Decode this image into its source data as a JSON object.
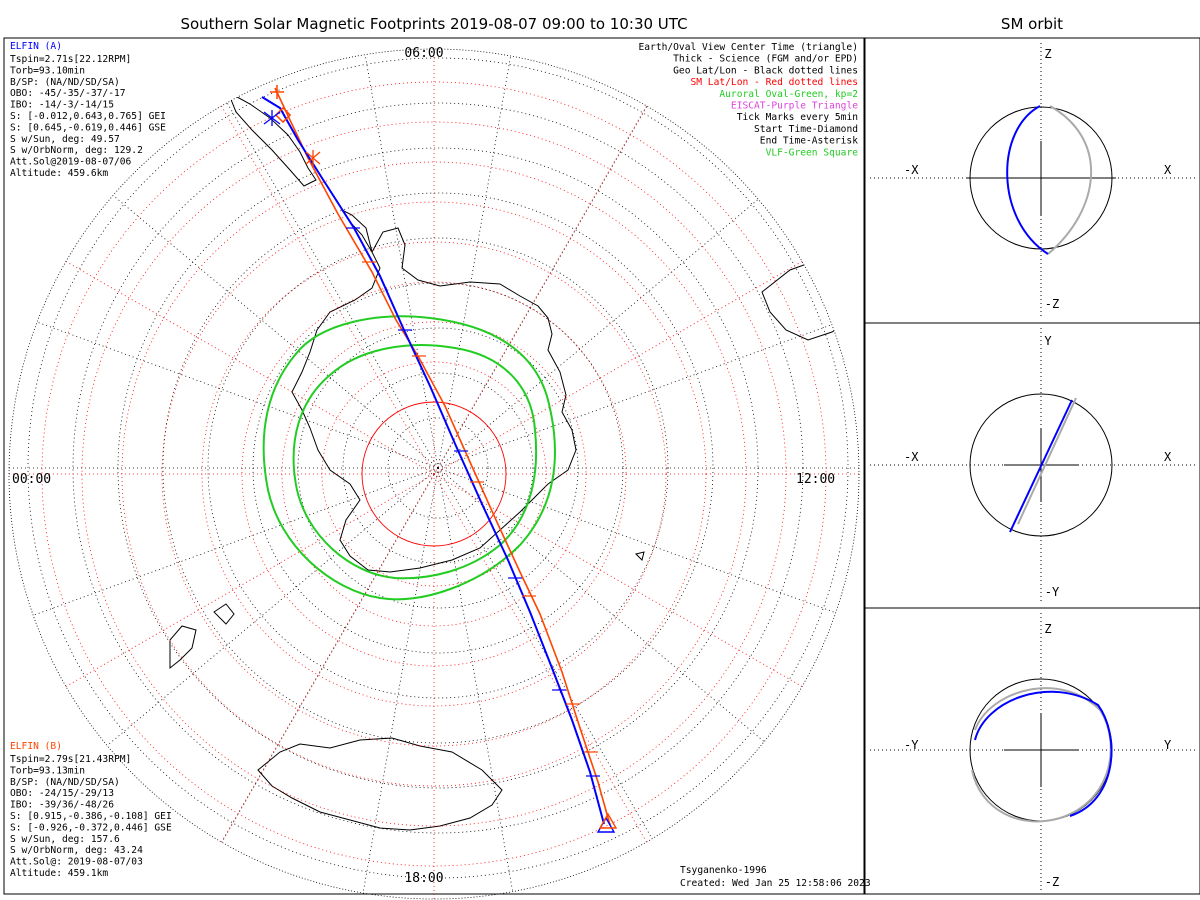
{
  "title": "Southern Solar Magnetic Footprints 2019-08-07 09:00 to 10:30 UTC",
  "side_title": "SM orbit",
  "mlt_labels": {
    "top": "06:00",
    "left": "00:00",
    "right": "12:00",
    "bottom": "18:00"
  },
  "elfin_a": {
    "name": "ELFIN (A)",
    "color": "#0000ff",
    "lines": [
      "Tspin=2.71s[22.12RPM]",
      "Torb=93.10min",
      "B/SP: (NA/ND/SD/SA)",
      "OBO: -45/-35/-37/-17",
      "IBO: -14/-3/-14/15",
      "S: [-0.012,0.643,0.765] GEI",
      "S: [0.645,-0.619,0.446] GSE",
      "S w/Sun, deg: 49.57",
      "S w/OrbNorm, deg: 129.2",
      "Att.Sol@2019-08-07/06",
      "Altitude: 459.6km"
    ]
  },
  "elfin_b": {
    "name": "ELFIN (B)",
    "color": "#ff4500",
    "lines": [
      "Tspin=2.79s[21.43RPM]",
      "Torb=93.13min",
      "B/SP: (NA/ND/SD/SA)",
      "OBO: -24/15/-29/13",
      "IBO: -39/36/-48/26",
      "S: [0.915,-0.386,-0.108] GEI",
      "S: [-0.926,-0.372,0.446] GSE",
      "S w/Sun, deg: 157.6",
      "S w/OrbNorm, deg: 43.24",
      "Att.Sol@: 2019-08-07/03",
      "Altitude: 459.1km"
    ]
  },
  "legend": [
    {
      "text": "Earth/Oval View Center Time (triangle)",
      "color": "#000000"
    },
    {
      "text": "Thick - Science (FGM and/or EPD)",
      "color": "#000000"
    },
    {
      "text": "Geo Lat/Lon - Black dotted lines",
      "color": "#000000"
    },
    {
      "text": "SM Lat/Lon - Red dotted lines",
      "color": "#ff0000"
    },
    {
      "text": "Auroral Oval-Green, kp=2",
      "color": "#22cc22"
    },
    {
      "text": "EISCAT-Purple Triangle",
      "color": "#dd44dd"
    },
    {
      "text": "Tick Marks every 5min",
      "color": "#000000"
    },
    {
      "text": "Start Time-Diamond",
      "color": "#000000"
    },
    {
      "text": "End Time-Asterisk",
      "color": "#000000"
    },
    {
      "text": "VLF-Green Square",
      "color": "#22cc22"
    }
  ],
  "footer": {
    "model": "Tsyganenko-1996",
    "created": "Created: Wed Jan 25 12:58:06 2023"
  },
  "panels": [
    {
      "top": "Z",
      "bottom": "-Z",
      "left": "-X",
      "right": "X"
    },
    {
      "top": "Y",
      "bottom": "-Y",
      "left": "-X",
      "right": "X"
    },
    {
      "top": "Z",
      "bottom": "-Z",
      "left": "-Y",
      "right": "Y"
    }
  ],
  "colors": {
    "oval": "#22cc22",
    "sm_grid": "#ff0000",
    "geo_grid": "#000000",
    "orbit_gray": "#aaaaaa"
  }
}
